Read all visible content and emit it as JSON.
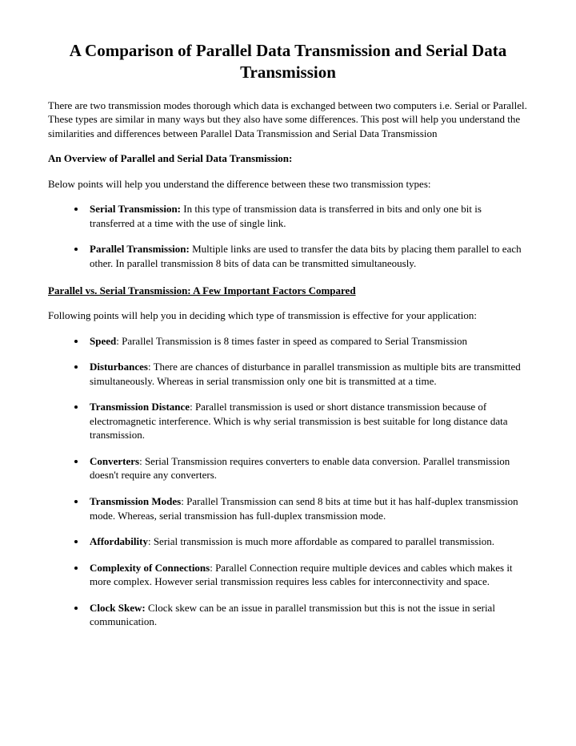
{
  "title": "A Comparison of Parallel Data Transmission and Serial Data Transmission",
  "intro": "There are two transmission modes thorough which data is exchanged between two computers i.e. Serial or Parallel. These types are similar in many ways but they also have some differences. This post will help you understand the similarities and differences between Parallel Data Transmission and Serial Data Transmission",
  "overview": {
    "heading": "An Overview of Parallel and Serial Data Transmission:",
    "lead": "Below points will help you understand the difference between these two transmission types:",
    "items": [
      {
        "label": "Serial Transmission:",
        "text": " In this type of transmission data is transferred in bits and only one bit is transferred at a time with the use of single link."
      },
      {
        "label": "Parallel Transmission:",
        "text": " Multiple links are used to transfer the data bits by placing them parallel to each other. In parallel transmission 8 bits of data can be transmitted simultaneously."
      }
    ]
  },
  "factors": {
    "heading": "Parallel vs. Serial Transmission: A Few Important Factors Compared",
    "lead": "Following points will help you in deciding which type of transmission is effective for your application:",
    "items": [
      {
        "label": "Speed",
        "text": ": Parallel Transmission is 8 times faster in speed as compared to Serial Transmission"
      },
      {
        "label": "Disturbances",
        "text": ": There are chances of disturbance in parallel transmission as multiple bits are transmitted simultaneously. Whereas in serial transmission only one bit is transmitted at a time."
      },
      {
        "label": "Transmission Distance",
        "text": ": Parallel transmission is used or short distance transmission because of electromagnetic interference. Which is why serial transmission is best suitable for long distance data transmission."
      },
      {
        "label": "Converters",
        "text": ": Serial Transmission requires converters to enable data conversion. Parallel transmission doesn't require any converters."
      },
      {
        "label": "Transmission Modes",
        "text": ": Parallel Transmission can send 8 bits at time but it has half-duplex transmission mode. Whereas, serial transmission has full-duplex transmission mode."
      },
      {
        "label": "Affordability",
        "text": ": Serial transmission is much more affordable as compared to parallel transmission."
      },
      {
        "label": "Complexity of Connections",
        "text": ": Parallel Connection require multiple devices and cables which makes it more complex. However serial transmission requires less cables for interconnectivity and space."
      },
      {
        "label": "Clock Skew:",
        "text": " Clock skew can be an issue in parallel transmission but this is not the issue in serial communication."
      }
    ]
  }
}
